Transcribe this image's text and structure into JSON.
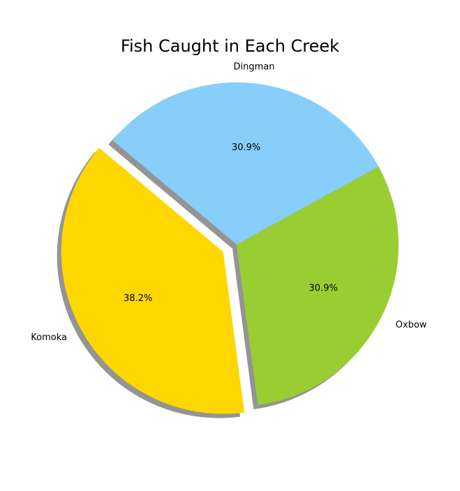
{
  "chart_data": {
    "type": "pie",
    "title": "Fish Caught in Each Creek",
    "labels": [
      "Komoka",
      "Oxbow",
      "Dingman"
    ],
    "values": [
      38.2,
      30.9,
      30.9
    ],
    "percent_labels": [
      "38.2%",
      "30.9%",
      "30.9%"
    ],
    "colors": [
      "#FFD700",
      "#9ACD32",
      "#87CEFA"
    ],
    "exploded": [
      "Komoka"
    ],
    "shadow": true
  }
}
